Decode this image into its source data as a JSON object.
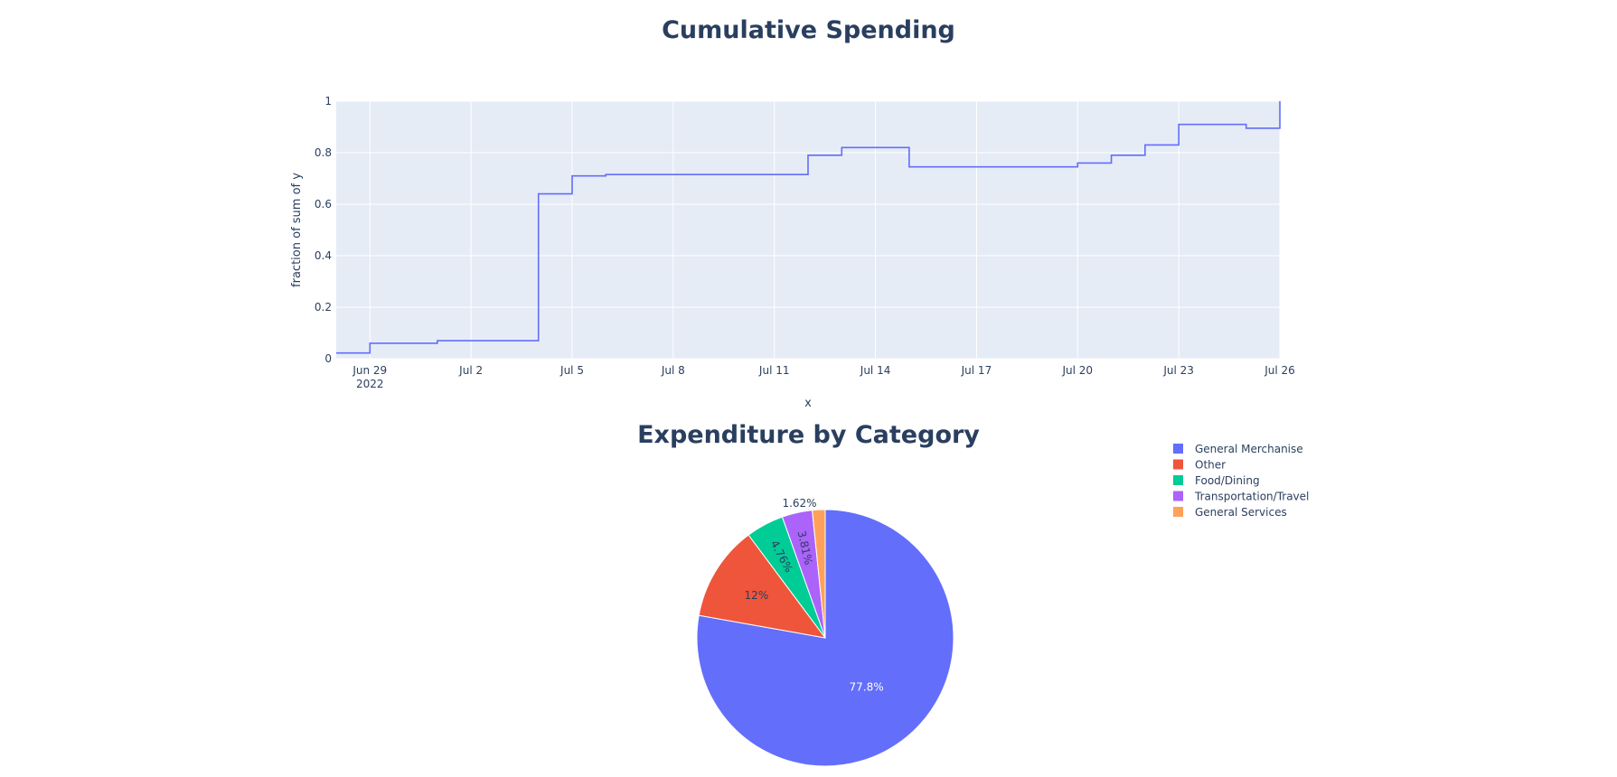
{
  "chart_data": [
    {
      "type": "line",
      "line_shape": "step",
      "title": "Cumulative Spending",
      "xlabel": "x",
      "ylabel": "fraction of sum of y",
      "x_range": [
        "2022-06-28",
        "2022-07-26"
      ],
      "ylim": [
        0,
        1
      ],
      "grid": true,
      "color": "#636efa",
      "x_ticks": [
        {
          "date": "2022-06-29",
          "label": "Jun 29",
          "sub": "2022"
        },
        {
          "date": "2022-07-02",
          "label": "Jul 2",
          "sub": ""
        },
        {
          "date": "2022-07-05",
          "label": "Jul 5",
          "sub": ""
        },
        {
          "date": "2022-07-08",
          "label": "Jul 8",
          "sub": ""
        },
        {
          "date": "2022-07-11",
          "label": "Jul 11",
          "sub": ""
        },
        {
          "date": "2022-07-14",
          "label": "Jul 14",
          "sub": ""
        },
        {
          "date": "2022-07-17",
          "label": "Jul 17",
          "sub": ""
        },
        {
          "date": "2022-07-20",
          "label": "Jul 20",
          "sub": ""
        },
        {
          "date": "2022-07-23",
          "label": "Jul 23",
          "sub": ""
        },
        {
          "date": "2022-07-26",
          "label": "Jul 26",
          "sub": ""
        }
      ],
      "y_ticks": [
        0,
        0.2,
        0.4,
        0.6,
        0.8,
        1
      ],
      "y_tick_labels": [
        "0",
        "0.2",
        "0.4",
        "0.6",
        "0.8",
        "1"
      ],
      "points": [
        {
          "x": "2022-06-28",
          "y": 0.022
        },
        {
          "x": "2022-06-29",
          "y": 0.06
        },
        {
          "x": "2022-07-01",
          "y": 0.07
        },
        {
          "x": "2022-07-04",
          "y": 0.64
        },
        {
          "x": "2022-07-05",
          "y": 0.71
        },
        {
          "x": "2022-07-06",
          "y": 0.715
        },
        {
          "x": "2022-07-12",
          "y": 0.79
        },
        {
          "x": "2022-07-13",
          "y": 0.82
        },
        {
          "x": "2022-07-15",
          "y": 0.745
        },
        {
          "x": "2022-07-20",
          "y": 0.76
        },
        {
          "x": "2022-07-21",
          "y": 0.79
        },
        {
          "x": "2022-07-22",
          "y": 0.83
        },
        {
          "x": "2022-07-23",
          "y": 0.91
        },
        {
          "x": "2022-07-25",
          "y": 0.895
        },
        {
          "x": "2022-07-26",
          "y": 1.0
        }
      ]
    },
    {
      "type": "pie",
      "title": "Expenditure by Category",
      "legend_position": "top-right",
      "slices": [
        {
          "name": "General Merchanise",
          "value": 77.8,
          "label": "77.8%",
          "color": "#636efa"
        },
        {
          "name": "Other",
          "value": 12.0,
          "label": "12%",
          "color": "#ef553b"
        },
        {
          "name": "Food/Dining",
          "value": 4.76,
          "label": "4.76%",
          "color": "#00cc96"
        },
        {
          "name": "Transportation/Travel",
          "value": 3.81,
          "label": "3.81%",
          "color": "#ab63fa"
        },
        {
          "name": "General Services",
          "value": 1.62,
          "label": "1.62%",
          "color": "#ffa15a"
        }
      ]
    }
  ]
}
